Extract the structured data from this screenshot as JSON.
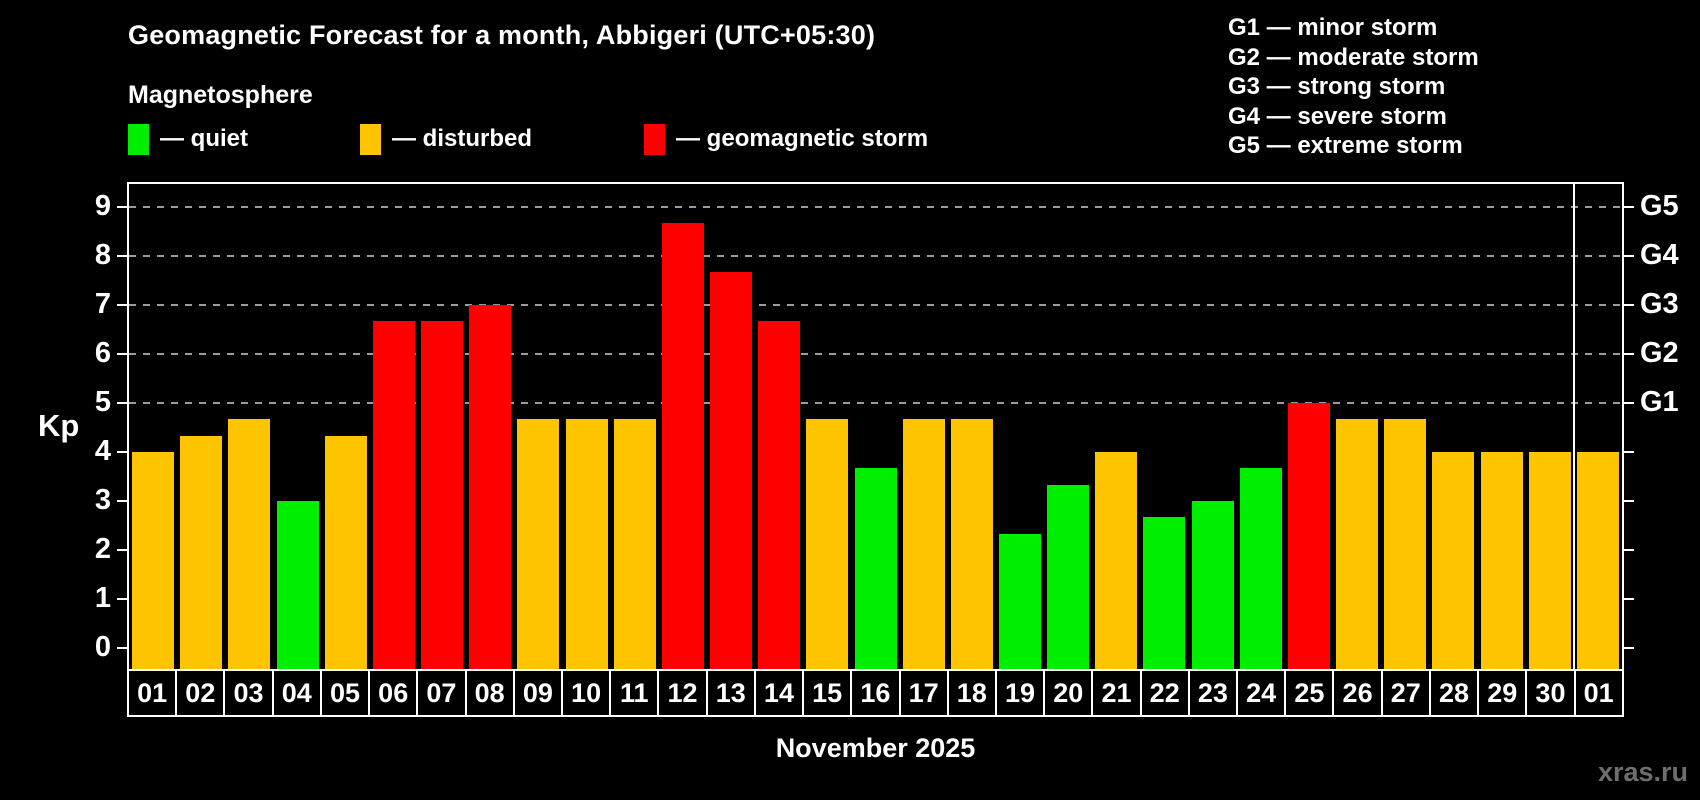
{
  "title": "Geomagnetic Forecast for a month, Abbigeri (UTC+05:30)",
  "subtitle": "Magnetosphere",
  "watermark": "xras.ru",
  "colors": {
    "quiet": "#00ee00",
    "disturbed": "#ffc400",
    "storm": "#ff0000",
    "gridline": "#9c9c9c",
    "frame": "#ffffff",
    "background": "#000000",
    "watermark_text": "#6e6e6e"
  },
  "legend": [
    {
      "status": "quiet",
      "label": "— quiet"
    },
    {
      "status": "disturbed",
      "label": "— disturbed"
    },
    {
      "status": "storm",
      "label": "— geomagnetic storm"
    }
  ],
  "storm_scale": [
    {
      "code": "G1",
      "label": "minor storm",
      "kp_level": 5
    },
    {
      "code": "G2",
      "label": "moderate storm",
      "kp_level": 6
    },
    {
      "code": "G3",
      "label": "strong storm",
      "kp_level": 7
    },
    {
      "code": "G4",
      "label": "severe storm",
      "kp_level": 8
    },
    {
      "code": "G5",
      "label": "extreme storm",
      "kp_level": 9
    }
  ],
  "chart_data": {
    "type": "bar",
    "title": "Geomagnetic Forecast for a month, Abbigeri (UTC+05:30)",
    "xlabel": "November 2025",
    "ylabel": "Kp",
    "ylim": [
      0,
      9
    ],
    "y_ticks": [
      0,
      1,
      2,
      3,
      4,
      5,
      6,
      7,
      8,
      9
    ],
    "gridline_levels": [
      5,
      6,
      7,
      8,
      9
    ],
    "right_axis_labels": [
      {
        "label": "G1",
        "level": 5
      },
      {
        "label": "G2",
        "level": 6
      },
      {
        "label": "G3",
        "level": 7
      },
      {
        "label": "G4",
        "level": 8
      },
      {
        "label": "G5",
        "level": 9
      }
    ],
    "legend_position": "top-left",
    "grid": "dashed horizontal at Kp 5-9 only",
    "separator_before_index": 30,
    "categories": [
      "01",
      "02",
      "03",
      "04",
      "05",
      "06",
      "07",
      "08",
      "09",
      "10",
      "11",
      "12",
      "13",
      "14",
      "15",
      "16",
      "17",
      "18",
      "19",
      "20",
      "21",
      "22",
      "23",
      "24",
      "25",
      "26",
      "27",
      "28",
      "29",
      "30",
      "01"
    ],
    "values": [
      4,
      4.33,
      4.67,
      3,
      4.33,
      6.67,
      6.67,
      7,
      4.67,
      4.67,
      4.67,
      8.67,
      7.67,
      6.67,
      4.67,
      3.67,
      4.67,
      4.67,
      2.33,
      3.33,
      4,
      2.67,
      3,
      3.67,
      5,
      4.67,
      4.67,
      4,
      4,
      4,
      4
    ],
    "statuses": [
      "disturbed",
      "disturbed",
      "disturbed",
      "quiet",
      "disturbed",
      "storm",
      "storm",
      "storm",
      "disturbed",
      "disturbed",
      "disturbed",
      "storm",
      "storm",
      "storm",
      "disturbed",
      "quiet",
      "disturbed",
      "disturbed",
      "quiet",
      "quiet",
      "disturbed",
      "quiet",
      "quiet",
      "quiet",
      "storm",
      "disturbed",
      "disturbed",
      "disturbed",
      "disturbed",
      "disturbed",
      "disturbed"
    ]
  }
}
